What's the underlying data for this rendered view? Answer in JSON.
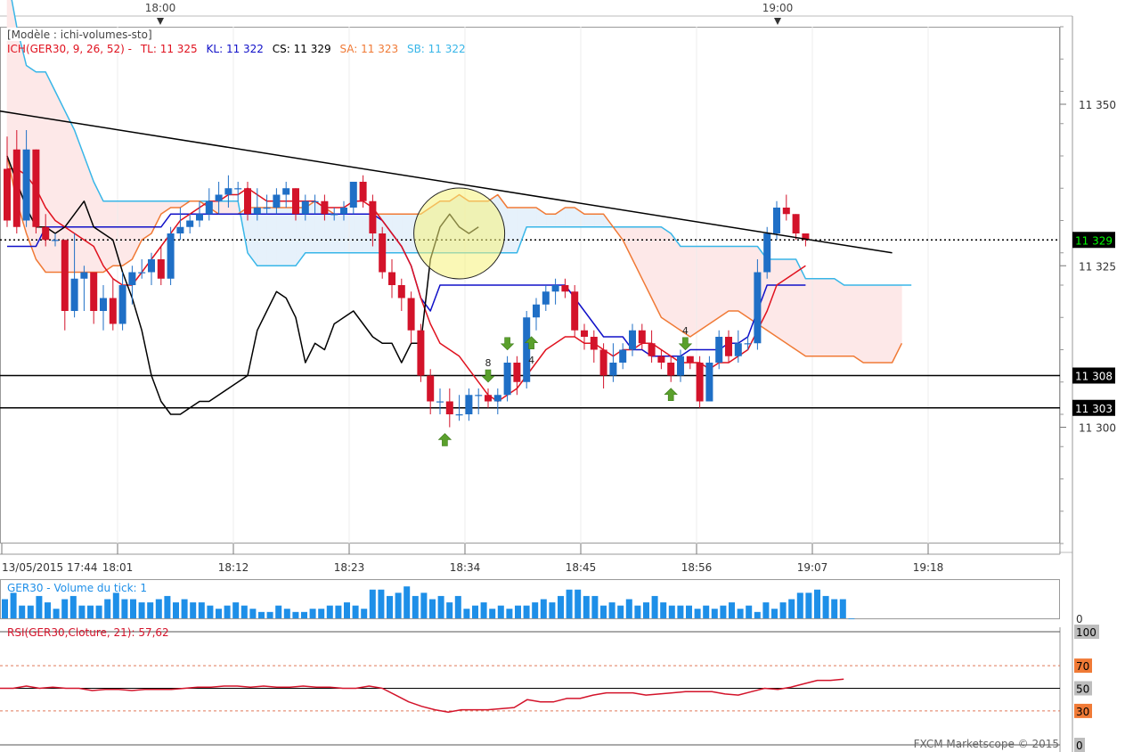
{
  "header": {
    "model_label": "[Modèle : ichi-volumes-sto]",
    "ich_label": "ICH(GER30, 9, 26, 52) -",
    "tl": "TL: 11 325",
    "kl": "KL: 11 322",
    "cs": "CS: 11 329",
    "sa": "SA: 11 323",
    "sb": "SB: 11 322",
    "top_times": [
      "18:00",
      "19:00"
    ]
  },
  "colors": {
    "bull": "#1f6fc6",
    "bear": "#d3132a",
    "tenkan": "#e0121f",
    "kijun": "#1010c8",
    "chikou": "#000000",
    "ssa": "#f07a36",
    "ssb": "#38b6e8",
    "cloud_bear": "#fde8e8",
    "cloud_bull": "#e6f1fb",
    "volume": "#1e8fe8",
    "rsi": "#d3132a",
    "price_tag": "#00ff00",
    "arrow": "#5aa02c"
  },
  "chart_data": [
    {
      "type": "candlestick",
      "title": "GER30",
      "time_labels": [
        "13/05/2015 17:44",
        "18:01",
        "18:12",
        "18:23",
        "18:34",
        "18:45",
        "18:56",
        "19:07",
        "19:18"
      ],
      "y_ticks": [
        "11 350",
        "11 325",
        "11 300"
      ],
      "ylim": [
        11282,
        11362
      ],
      "candles": [
        {
          "o": 11340,
          "h": 11345,
          "l": 11331,
          "c": 11332
        },
        {
          "o": 11343,
          "h": 11346,
          "l": 11330,
          "c": 11331
        },
        {
          "o": 11332,
          "h": 11346,
          "l": 11331,
          "c": 11343
        },
        {
          "o": 11343,
          "h": 11343,
          "l": 11330,
          "c": 11331
        },
        {
          "o": 11331,
          "h": 11333,
          "l": 11328,
          "c": 11329
        },
        {
          "o": 11329,
          "h": 11330,
          "l": 11328,
          "c": 11329
        },
        {
          "o": 11329,
          "h": 11329,
          "l": 11315,
          "c": 11318
        },
        {
          "o": 11318,
          "h": 11330,
          "l": 11317,
          "c": 11323
        },
        {
          "o": 11323,
          "h": 11325,
          "l": 11318,
          "c": 11324
        },
        {
          "o": 11324,
          "h": 11324,
          "l": 11316,
          "c": 11318
        },
        {
          "o": 11318,
          "h": 11322,
          "l": 11315,
          "c": 11320
        },
        {
          "o": 11320,
          "h": 11323,
          "l": 11315,
          "c": 11316
        },
        {
          "o": 11316,
          "h": 11324,
          "l": 11315,
          "c": 11322
        },
        {
          "o": 11322,
          "h": 11325,
          "l": 11319,
          "c": 11324
        },
        {
          "o": 11324,
          "h": 11326,
          "l": 11323,
          "c": 11324
        },
        {
          "o": 11324,
          "h": 11327,
          "l": 11322,
          "c": 11326
        },
        {
          "o": 11326,
          "h": 11328,
          "l": 11322,
          "c": 11323
        },
        {
          "o": 11323,
          "h": 11331,
          "l": 11322,
          "c": 11330
        },
        {
          "o": 11330,
          "h": 11334,
          "l": 11329,
          "c": 11331
        },
        {
          "o": 11331,
          "h": 11333,
          "l": 11330,
          "c": 11332
        },
        {
          "o": 11332,
          "h": 11335,
          "l": 11331,
          "c": 11333
        },
        {
          "o": 11333,
          "h": 11337,
          "l": 11332,
          "c": 11335
        },
        {
          "o": 11335,
          "h": 11338,
          "l": 11333,
          "c": 11336
        },
        {
          "o": 11336,
          "h": 11339,
          "l": 11334,
          "c": 11337
        },
        {
          "o": 11337,
          "h": 11338,
          "l": 11335,
          "c": 11337
        },
        {
          "o": 11337,
          "h": 11338,
          "l": 11332,
          "c": 11333
        },
        {
          "o": 11333,
          "h": 11337,
          "l": 11332,
          "c": 11334
        },
        {
          "o": 11334,
          "h": 11336,
          "l": 11333,
          "c": 11334
        },
        {
          "o": 11334,
          "h": 11337,
          "l": 11333,
          "c": 11336
        },
        {
          "o": 11336,
          "h": 11338,
          "l": 11334,
          "c": 11337
        },
        {
          "o": 11337,
          "h": 11337,
          "l": 11332,
          "c": 11333
        },
        {
          "o": 11333,
          "h": 11336,
          "l": 11332,
          "c": 11335
        },
        {
          "o": 11335,
          "h": 11336,
          "l": 11333,
          "c": 11335
        },
        {
          "o": 11335,
          "h": 11336,
          "l": 11332,
          "c": 11333
        },
        {
          "o": 11333,
          "h": 11334,
          "l": 11332,
          "c": 11333
        },
        {
          "o": 11333,
          "h": 11335,
          "l": 11332,
          "c": 11334
        },
        {
          "o": 11334,
          "h": 11338,
          "l": 11333,
          "c": 11338
        },
        {
          "o": 11338,
          "h": 11339,
          "l": 11334,
          "c": 11335
        },
        {
          "o": 11335,
          "h": 11336,
          "l": 11328,
          "c": 11330
        },
        {
          "o": 11330,
          "h": 11331,
          "l": 11323,
          "c": 11324
        },
        {
          "o": 11324,
          "h": 11326,
          "l": 11320,
          "c": 11322
        },
        {
          "o": 11322,
          "h": 11323,
          "l": 11318,
          "c": 11320
        },
        {
          "o": 11320,
          "h": 11321,
          "l": 11313,
          "c": 11315
        },
        {
          "o": 11315,
          "h": 11316,
          "l": 11307,
          "c": 11308
        },
        {
          "o": 11308,
          "h": 11309,
          "l": 11302,
          "c": 11304
        },
        {
          "o": 11304,
          "h": 11306,
          "l": 11302,
          "c": 11304
        },
        {
          "o": 11304,
          "h": 11306,
          "l": 11300,
          "c": 11302
        },
        {
          "o": 11302,
          "h": 11305,
          "l": 11301,
          "c": 11302
        },
        {
          "o": 11302,
          "h": 11306,
          "l": 11301,
          "c": 11305
        },
        {
          "o": 11305,
          "h": 11306,
          "l": 11302,
          "c": 11305
        },
        {
          "o": 11305,
          "h": 11306,
          "l": 11303,
          "c": 11304
        },
        {
          "o": 11304,
          "h": 11306,
          "l": 11302,
          "c": 11305
        },
        {
          "o": 11305,
          "h": 11311,
          "l": 11304,
          "c": 11310
        },
        {
          "o": 11310,
          "h": 11311,
          "l": 11305,
          "c": 11307
        },
        {
          "o": 11307,
          "h": 11318,
          "l": 11306,
          "c": 11317
        },
        {
          "o": 11317,
          "h": 11320,
          "l": 11315,
          "c": 11319
        },
        {
          "o": 11319,
          "h": 11322,
          "l": 11318,
          "c": 11321
        },
        {
          "o": 11321,
          "h": 11323,
          "l": 11319,
          "c": 11322
        },
        {
          "o": 11322,
          "h": 11323,
          "l": 11320,
          "c": 11321
        },
        {
          "o": 11321,
          "h": 11322,
          "l": 11314,
          "c": 11315
        },
        {
          "o": 11315,
          "h": 11316,
          "l": 11312,
          "c": 11314
        },
        {
          "o": 11314,
          "h": 11315,
          "l": 11310,
          "c": 11312
        },
        {
          "o": 11312,
          "h": 11313,
          "l": 11306,
          "c": 11308
        },
        {
          "o": 11308,
          "h": 11313,
          "l": 11307,
          "c": 11310
        },
        {
          "o": 11310,
          "h": 11313,
          "l": 11309,
          "c": 11312
        },
        {
          "o": 11312,
          "h": 11316,
          "l": 11311,
          "c": 11315
        },
        {
          "o": 11315,
          "h": 11316,
          "l": 11312,
          "c": 11313
        },
        {
          "o": 11313,
          "h": 11315,
          "l": 11310,
          "c": 11311
        },
        {
          "o": 11311,
          "h": 11312,
          "l": 11309,
          "c": 11310
        },
        {
          "o": 11310,
          "h": 11311,
          "l": 11307,
          "c": 11308
        },
        {
          "o": 11308,
          "h": 11312,
          "l": 11307,
          "c": 11311
        },
        {
          "o": 11311,
          "h": 11311,
          "l": 11309,
          "c": 11310
        },
        {
          "o": 11310,
          "h": 11311,
          "l": 11303,
          "c": 11304
        },
        {
          "o": 11304,
          "h": 11311,
          "l": 11304,
          "c": 11310
        },
        {
          "o": 11310,
          "h": 11315,
          "l": 11309,
          "c": 11314
        },
        {
          "o": 11314,
          "h": 11315,
          "l": 11310,
          "c": 11311
        },
        {
          "o": 11311,
          "h": 11315,
          "l": 11310,
          "c": 11313
        },
        {
          "o": 11313,
          "h": 11314,
          "l": 11312,
          "c": 11313
        },
        {
          "o": 11313,
          "h": 11326,
          "l": 11312,
          "c": 11324
        },
        {
          "o": 11324,
          "h": 11331,
          "l": 11323,
          "c": 11330
        },
        {
          "o": 11330,
          "h": 11335,
          "l": 11329,
          "c": 11334
        },
        {
          "o": 11334,
          "h": 11336,
          "l": 11332,
          "c": 11333
        },
        {
          "o": 11333,
          "h": 11333,
          "l": 11329,
          "c": 11330
        },
        {
          "o": 11330,
          "h": 11330,
          "l": 11328,
          "c": 11329
        }
      ],
      "tenkan": [
        11340,
        11340,
        11339,
        11337,
        11334,
        11332,
        11331,
        11330,
        11329,
        11328,
        11325,
        11323,
        11322,
        11322,
        11324,
        11326,
        11328,
        11330,
        11332,
        11333,
        11334,
        11335,
        11335,
        11336,
        11336,
        11337,
        11336,
        11335,
        11335,
        11335,
        11335,
        11335,
        11335,
        11334,
        11334,
        11334,
        11335,
        11335,
        11334,
        11332,
        11330,
        11328,
        11325,
        11320,
        11316,
        11313,
        11312,
        11311,
        11309,
        11307,
        11305,
        11304,
        11305,
        11306,
        11308,
        11310,
        11312,
        11313,
        11314,
        11314,
        11313,
        11313,
        11312,
        11311,
        11312,
        11312,
        11313,
        11313,
        11312,
        11311,
        11310,
        11310,
        11310,
        11309,
        11310,
        11310,
        11311,
        11312,
        11315,
        11318,
        11322,
        11323,
        11324,
        11325
      ],
      "kijun": [
        11328,
        11328,
        11328,
        11328,
        11331,
        11331,
        11331,
        11331,
        11331,
        11331,
        11331,
        11331,
        11331,
        11331,
        11331,
        11331,
        11331,
        11333,
        11333,
        11333,
        11333,
        11333,
        11333,
        11333,
        11333,
        11333,
        11333,
        11333,
        11333,
        11333,
        11333,
        11333,
        11333,
        11333,
        11333,
        11333,
        11333,
        11333,
        11333,
        11332,
        11330,
        11328,
        11325,
        11320,
        11318,
        11322,
        11322,
        11322,
        11322,
        11322,
        11322,
        11322,
        11322,
        11322,
        11322,
        11322,
        11322,
        11322,
        11322,
        11320,
        11318,
        11316,
        11314,
        11314,
        11314,
        11312,
        11312,
        11311,
        11311,
        11311,
        11311,
        11312,
        11312,
        11312,
        11312,
        11313,
        11313,
        11314,
        11318,
        11322,
        11322,
        11322,
        11322,
        11322
      ],
      "chikou": [
        11342,
        11338,
        11334,
        11331,
        11331,
        11330,
        11331,
        11333,
        11335,
        11331,
        11330,
        11329,
        11324,
        11320,
        11315,
        11308,
        11304,
        11302,
        11302,
        11303,
        11304,
        11304,
        11305,
        11306,
        11307,
        11308,
        11315,
        11318,
        11321,
        11320,
        11317,
        11310,
        11313,
        11312,
        11316,
        11317,
        11318,
        11316,
        11314,
        11313,
        11313,
        11310,
        11313,
        11313,
        11326,
        11331,
        11333,
        11331,
        11330,
        11331
      ],
      "ssa": [
        11342,
        11335,
        11330,
        11326,
        11324,
        11324,
        11324,
        11324,
        11324,
        11324,
        11324,
        11325,
        11325,
        11326,
        11329,
        11330,
        11333,
        11334,
        11334,
        11335,
        11335,
        11334,
        11333,
        11333,
        11333,
        11334,
        11334,
        11334,
        11334,
        11334,
        11334,
        11334,
        11335,
        11334,
        11333,
        11333,
        11333,
        11333,
        11333,
        11333,
        11333,
        11333,
        11333,
        11333,
        11334,
        11335,
        11335,
        11336,
        11335,
        11335,
        11335,
        11336,
        11334,
        11334,
        11334,
        11334,
        11333,
        11333,
        11334,
        11334,
        11333,
        11333,
        11333,
        11331,
        11329,
        11326,
        11323,
        11320,
        11317,
        11316,
        11315,
        11314,
        11315,
        11316,
        11317,
        11318,
        11318,
        11317,
        11316,
        11315,
        11314,
        11313,
        11312,
        11311,
        11311,
        11311,
        11311,
        11311,
        11311,
        11310,
        11310,
        11310,
        11310,
        11313
      ],
      "ssb": [
        11370,
        11362,
        11356,
        11355,
        11355,
        11352,
        11349,
        11346,
        11342,
        11338,
        11335,
        11335,
        11335,
        11335,
        11335,
        11335,
        11335,
        11335,
        11335,
        11335,
        11335,
        11335,
        11335,
        11335,
        11335,
        11327,
        11325,
        11325,
        11325,
        11325,
        11325,
        11327,
        11327,
        11327,
        11327,
        11327,
        11327,
        11327,
        11327,
        11327,
        11327,
        11327,
        11327,
        11327,
        11327,
        11327,
        11327,
        11327,
        11327,
        11327,
        11327,
        11327,
        11327,
        11327,
        11331,
        11331,
        11331,
        11331,
        11331,
        11331,
        11331,
        11331,
        11331,
        11331,
        11331,
        11331,
        11331,
        11331,
        11331,
        11330,
        11328,
        11328,
        11328,
        11328,
        11328,
        11328,
        11328,
        11328,
        11328,
        11326,
        11326,
        11326,
        11326,
        11323,
        11323,
        11323,
        11323,
        11322,
        11322,
        11322,
        11322,
        11322,
        11322,
        11322,
        11322
      ],
      "levels": [
        {
          "label": "11 329",
          "value": 11329,
          "style": "dotted",
          "current": true
        },
        {
          "label": "11 308",
          "value": 11308,
          "style": "solid"
        },
        {
          "label": "11 303",
          "value": 11303,
          "style": "solid"
        }
      ],
      "trendline": {
        "from": {
          "bar": -1,
          "value": 11349
        },
        "to": {
          "bar": 92,
          "value": 11327
        }
      },
      "signals": [
        {
          "bar": 45.5,
          "dir": "up",
          "label": ""
        },
        {
          "bar": 50,
          "dir": "down",
          "label": "8"
        },
        {
          "bar": 52,
          "dir": "down",
          "label": ""
        },
        {
          "bar": 54.5,
          "dir": "up",
          "label": "4"
        },
        {
          "bar": 69,
          "dir": "up",
          "label": ""
        },
        {
          "bar": 70.5,
          "dir": "down",
          "label": "4"
        }
      ],
      "highlight": {
        "bar": 47,
        "value": 11330
      }
    },
    {
      "type": "bar",
      "title": "GER30 - Volume du tick: 1",
      "y_ticks": [
        "0"
      ],
      "values": [
        6,
        8,
        4,
        4,
        7,
        5,
        3,
        6,
        7,
        4,
        4,
        4,
        6,
        8,
        6,
        6,
        5,
        5,
        6,
        7,
        5,
        6,
        5,
        5,
        4,
        3,
        4,
        5,
        4,
        3,
        2,
        2,
        4,
        3,
        2,
        2,
        3,
        3,
        4,
        4,
        5,
        4,
        3,
        9,
        9,
        7,
        8,
        10,
        7,
        8,
        6,
        7,
        5,
        7,
        3,
        4,
        5,
        3,
        4,
        3,
        4,
        4,
        5,
        6,
        5,
        7,
        9,
        9,
        7,
        7,
        4,
        5,
        4,
        6,
        4,
        5,
        7,
        5,
        4,
        4,
        4,
        3,
        4,
        3,
        4,
        5,
        3,
        4,
        2,
        5,
        3,
        5,
        6,
        8,
        8,
        9,
        7,
        6,
        6,
        0
      ],
      "ylim": [
        0,
        12
      ]
    },
    {
      "type": "line",
      "title": "RSI(GER30,Cloture, 21): 57,62",
      "y_ticks": [
        "100",
        "70",
        "50",
        "30",
        "0"
      ],
      "ylim": [
        0,
        100
      ],
      "values": [
        50,
        50,
        52,
        50,
        51,
        50,
        50,
        48,
        49,
        49,
        48,
        49,
        49,
        49,
        50,
        51,
        51,
        52,
        52,
        51,
        52,
        51,
        51,
        52,
        51,
        51,
        50,
        50,
        52,
        50,
        44,
        38,
        34,
        31,
        29,
        31,
        31,
        31,
        32,
        33,
        40,
        38,
        38,
        41,
        41,
        44,
        46,
        46,
        46,
        44,
        45,
        46,
        47,
        47,
        47,
        45,
        44,
        47,
        50,
        49,
        51,
        54,
        57,
        57,
        58
      ],
      "guides": [
        70,
        50,
        30
      ]
    }
  ],
  "footer": {
    "watermark": "FXCM Marketscope © 2015"
  }
}
